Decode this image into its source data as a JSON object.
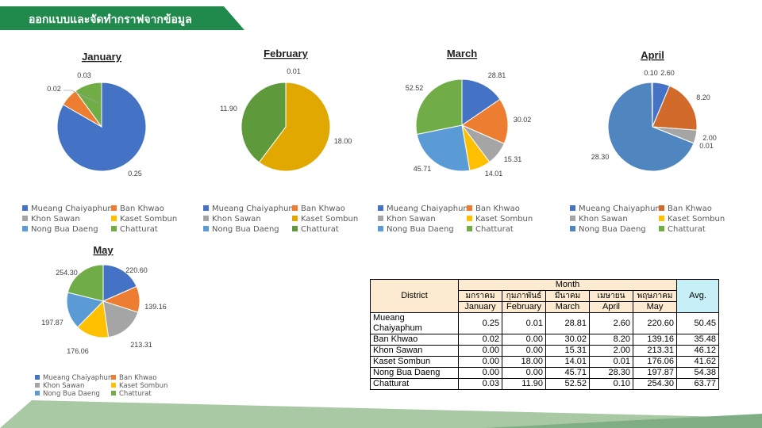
{
  "slide": {
    "title": "ออกแบบและจัดทำกราฟจากข้อมูล"
  },
  "colors": {
    "Mueang Chaiyaphum": "#4472c4",
    "Ban Khwao": "#ed7d31",
    "Khon Sawan": "#a5a5a5",
    "Kaset Sombun": "#ffc000",
    "Nong Bua Daeng": "#5b9bd5",
    "Chatturat": "#70ad47",
    "feb_kaset": "#e0a800",
    "feb_chatturat": "#5e9a3c",
    "apr_nongbua": "#4f86c0",
    "apr_banKhwao": "#d16a2a",
    "banner": "#1f8a4c"
  },
  "legend_labels": [
    "Mueang Chaiyaphum",
    "Ban Khwao",
    "Khon Sawan",
    "Kaset Sombun",
    "Nong Bua Daeng",
    "Chatturat"
  ],
  "chart_data": [
    {
      "type": "pie",
      "title": "January",
      "categories": [
        "Mueang Chaiyaphum",
        "Ban Khwao",
        "Khon Sawan",
        "Kaset Sombun",
        "Nong Bua Daeng",
        "Chatturat"
      ],
      "values": [
        0.25,
        0.02,
        0.0,
        0.0,
        0.0,
        0.03
      ],
      "data_labels": [
        "0.25",
        "0.02",
        "",
        "",
        "",
        "0.03"
      ],
      "legend": "bottom"
    },
    {
      "type": "pie",
      "title": "February",
      "categories": [
        "Mueang Chaiyaphum",
        "Ban Khwao",
        "Khon Sawan",
        "Kaset Sombun",
        "Nong Bua Daeng",
        "Chatturat"
      ],
      "values": [
        0.01,
        0.0,
        0.0,
        18.0,
        0.0,
        11.9
      ],
      "data_labels": [
        "0.01",
        "",
        "",
        "18.00",
        "",
        "11.90"
      ],
      "legend": "bottom"
    },
    {
      "type": "pie",
      "title": "March",
      "categories": [
        "Mueang Chaiyaphum",
        "Ban Khwao",
        "Khon Sawan",
        "Kaset Sombun",
        "Nong Bua Daeng",
        "Chatturat"
      ],
      "values": [
        28.81,
        30.02,
        15.31,
        14.01,
        45.71,
        52.52
      ],
      "data_labels": [
        "28.81",
        "30.02",
        "15.31",
        "14.01",
        "45.71",
        "52.52"
      ],
      "legend": "bottom"
    },
    {
      "type": "pie",
      "title": "April",
      "categories": [
        "Mueang Chaiyaphum",
        "Ban Khwao",
        "Khon Sawan",
        "Kaset Sombun",
        "Nong Bua Daeng",
        "Chatturat"
      ],
      "values": [
        2.6,
        8.2,
        2.0,
        0.01,
        28.3,
        0.1
      ],
      "data_labels": [
        "2.60",
        "8.20",
        "2.00",
        "0.01",
        "28.30",
        "0.10"
      ],
      "legend": "bottom"
    },
    {
      "type": "pie",
      "title": "May",
      "categories": [
        "Mueang Chaiyaphum",
        "Ban Khwao",
        "Khon Sawan",
        "Kaset Sombun",
        "Nong Bua Daeng",
        "Chatturat"
      ],
      "values": [
        220.6,
        139.16,
        213.31,
        176.06,
        197.87,
        254.3
      ],
      "data_labels": [
        "220.60",
        "139.16",
        "213.31",
        "176.06",
        "197.87",
        "254.30"
      ],
      "legend": "bottom"
    },
    {
      "type": "table",
      "header": {
        "district": "District",
        "month": "Month",
        "months_th": [
          "มกราคม",
          "กุมภาพันธ์",
          "มีนาคม",
          "เมษายน",
          "พฤษภาคม"
        ],
        "months_en": [
          "January",
          "February",
          "March",
          "April",
          "May"
        ],
        "avg": "Avg."
      },
      "rows": [
        {
          "district": "Mueang Chaiyaphum",
          "values": [
            "0.25",
            "0.01",
            "28.81",
            "2.60",
            "220.60"
          ],
          "avg": "50.45"
        },
        {
          "district": "Ban Khwao",
          "values": [
            "0.02",
            "0.00",
            "30.02",
            "8.20",
            "139.16"
          ],
          "avg": "35.48"
        },
        {
          "district": "Khon Sawan",
          "values": [
            "0.00",
            "0.00",
            "15.31",
            "2.00",
            "213.31"
          ],
          "avg": "46.12"
        },
        {
          "district": "Kaset Sombun",
          "values": [
            "0.00",
            "18.00",
            "14.01",
            "0.01",
            "176.06"
          ],
          "avg": "41.62"
        },
        {
          "district": "Nong Bua Daeng",
          "values": [
            "0.00",
            "0.00",
            "45.71",
            "28.30",
            "197.87"
          ],
          "avg": "54.38"
        },
        {
          "district": "Chatturat",
          "values": [
            "0.03",
            "11.90",
            "52.52",
            "0.10",
            "254.30"
          ],
          "avg": "63.77"
        }
      ]
    }
  ]
}
